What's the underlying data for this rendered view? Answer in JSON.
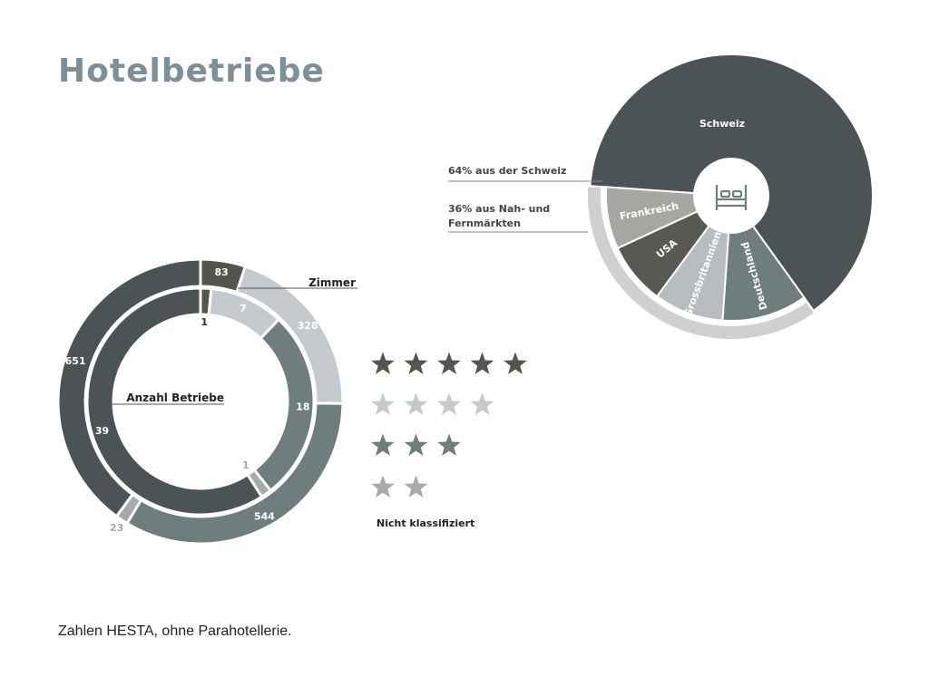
{
  "header": {
    "title": "Hotelbetriebe"
  },
  "footer": {
    "note": "Zahlen HESTA, ohne Parahotellerie."
  },
  "stars": {
    "unclassified_label": "Nicht klassifiziert"
  },
  "colors": {
    "five_star": "#555550",
    "four_star": "#c4cacd",
    "three_star": "#6f7d7d",
    "two_star": "#a7aaa8",
    "unclassified": "#4b5354",
    "schweiz": "#4b5354",
    "frankreich": "#a7a6a2",
    "usa": "#5a5854",
    "grossbritannien": "#b7bcbf",
    "deutschland": "#6f7d7d",
    "outer_arc": "#cfd0cf"
  },
  "chart_data": [
    {
      "type": "donut",
      "categories": [
        "5 Sterne",
        "4 Sterne",
        "3 Sterne",
        "2 Sterne",
        "Nicht klassifiziert"
      ],
      "series": [
        {
          "name": "Zimmer",
          "values": [
            83,
            328,
            544,
            23,
            651
          ]
        },
        {
          "name": "Anzahl Betriebe",
          "values": [
            1,
            7,
            18,
            1,
            39
          ]
        }
      ],
      "legend": "stars-right"
    },
    {
      "type": "pie",
      "title": "",
      "slices": [
        {
          "label": "Schweiz",
          "value": 64
        },
        {
          "label": "Deutschland",
          "value": 11
        },
        {
          "label": "Grossbritannien",
          "value": 9
        },
        {
          "label": "USA",
          "value": 8
        },
        {
          "label": "Frankreich",
          "value": 8
        }
      ],
      "annotations": {
        "domestic": "64% aus der Schweiz",
        "foreign_line1": "36% aus Nah- und",
        "foreign_line2": "Fernmärkten"
      },
      "icon": "bed-icon"
    }
  ]
}
